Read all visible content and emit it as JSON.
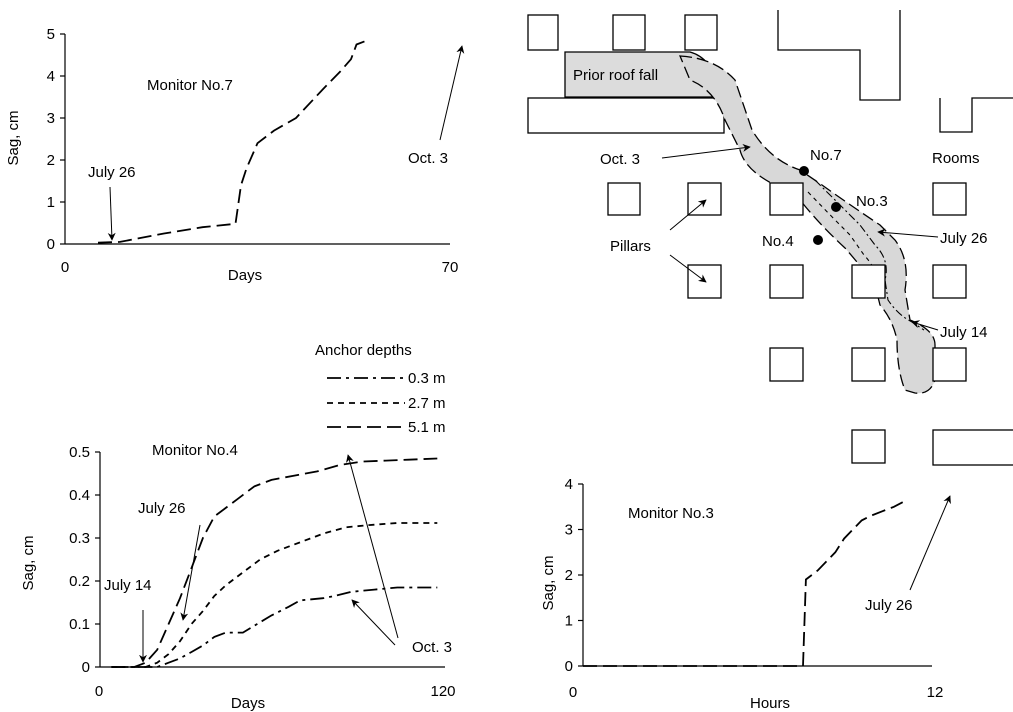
{
  "chart_data": [
    {
      "id": "monitor7",
      "type": "line",
      "title": "Monitor No.7",
      "xlabel": "Days",
      "ylabel": "Sag, cm",
      "xlim": [
        0,
        70
      ],
      "ylim": [
        0,
        5
      ],
      "xticks": [
        "0",
        "70"
      ],
      "yticks": [
        "0",
        "1",
        "2",
        "3",
        "4",
        "5"
      ],
      "series": [
        {
          "style": "long-dash",
          "x": [
            6,
            10,
            18,
            25,
            31,
            32,
            33,
            35,
            38,
            42,
            47,
            50,
            52,
            53,
            55
          ],
          "y": [
            0.03,
            0.05,
            0.25,
            0.4,
            0.48,
            1.4,
            1.8,
            2.4,
            2.7,
            3.0,
            3.7,
            4.1,
            4.4,
            4.75,
            4.85
          ]
        }
      ],
      "annotations": [
        "July 26",
        "Oct. 3"
      ]
    },
    {
      "id": "monitor4",
      "type": "line",
      "title": "Monitor No.4",
      "xlabel": "Days",
      "ylabel": "Sag, cm",
      "xlim": [
        0,
        120
      ],
      "ylim": [
        0,
        0.5
      ],
      "xticks": [
        "0",
        "120"
      ],
      "yticks": [
        "0",
        "0.1",
        "0.2",
        "0.3",
        "0.4",
        "0.5"
      ],
      "legend_title": "Anchor depths",
      "legend_position": "top-right",
      "series": [
        {
          "name": "0.3 m",
          "style": "dash-dot",
          "x": [
            4,
            20,
            24,
            28,
            32,
            36,
            40,
            44,
            50,
            55,
            60,
            66,
            70,
            78,
            82,
            88,
            96,
            104,
            112,
            118
          ],
          "y": [
            0,
            0,
            0.01,
            0.02,
            0.035,
            0.05,
            0.07,
            0.08,
            0.08,
            0.1,
            0.12,
            0.14,
            0.155,
            0.16,
            0.165,
            0.175,
            0.18,
            0.185,
            0.185,
            0.185
          ]
        },
        {
          "name": "2.7 m",
          "style": "short-dash",
          "x": [
            4,
            16,
            20,
            24,
            28,
            32,
            36,
            40,
            44,
            50,
            56,
            62,
            70,
            78,
            86,
            94,
            104,
            112,
            118
          ],
          "y": [
            0,
            0,
            0.01,
            0.03,
            0.06,
            0.1,
            0.13,
            0.165,
            0.19,
            0.22,
            0.25,
            0.27,
            0.29,
            0.31,
            0.325,
            0.33,
            0.335,
            0.335,
            0.335
          ]
        },
        {
          "name": "5.1 m",
          "style": "long-dash",
          "x": [
            4,
            12,
            16,
            20,
            24,
            28,
            32,
            36,
            40,
            44,
            48,
            54,
            60,
            68,
            76,
            84,
            92,
            100,
            108,
            118
          ],
          "y": [
            0,
            0,
            0.01,
            0.04,
            0.1,
            0.16,
            0.23,
            0.3,
            0.35,
            0.37,
            0.39,
            0.42,
            0.435,
            0.445,
            0.455,
            0.47,
            0.478,
            0.48,
            0.482,
            0.485
          ]
        }
      ],
      "annotations": [
        "July 26",
        "July 14",
        "Oct. 3"
      ]
    },
    {
      "id": "monitor3",
      "type": "line",
      "title": "Monitor No.3",
      "xlabel": "Hours",
      "ylabel": "Sag, cm",
      "xlim": [
        0,
        12
      ],
      "ylim": [
        0,
        4
      ],
      "xticks": [
        "0",
        "12"
      ],
      "yticks": [
        "0",
        "1",
        "2",
        "3",
        "4"
      ],
      "series": [
        {
          "style": "long-dash",
          "x": [
            0,
            7.5,
            7.6,
            7.8,
            8.0,
            8.3,
            8.6,
            8.9,
            9.2,
            9.5,
            9.8,
            10.2,
            10.6,
            10.9
          ],
          "y": [
            0,
            0,
            1.9,
            2.0,
            2.1,
            2.3,
            2.5,
            2.8,
            3.0,
            3.2,
            3.3,
            3.4,
            3.5,
            3.6
          ]
        }
      ],
      "annotations": [
        "July 26"
      ]
    }
  ],
  "map": {
    "labels": {
      "prior_roof_fall": "Prior roof fall",
      "oct3": "Oct. 3",
      "no7": "No.7",
      "no3": "No.3",
      "no4": "No.4",
      "rooms": "Rooms",
      "pillars": "Pillars",
      "july26": "July 26",
      "july14": "July 14"
    }
  }
}
